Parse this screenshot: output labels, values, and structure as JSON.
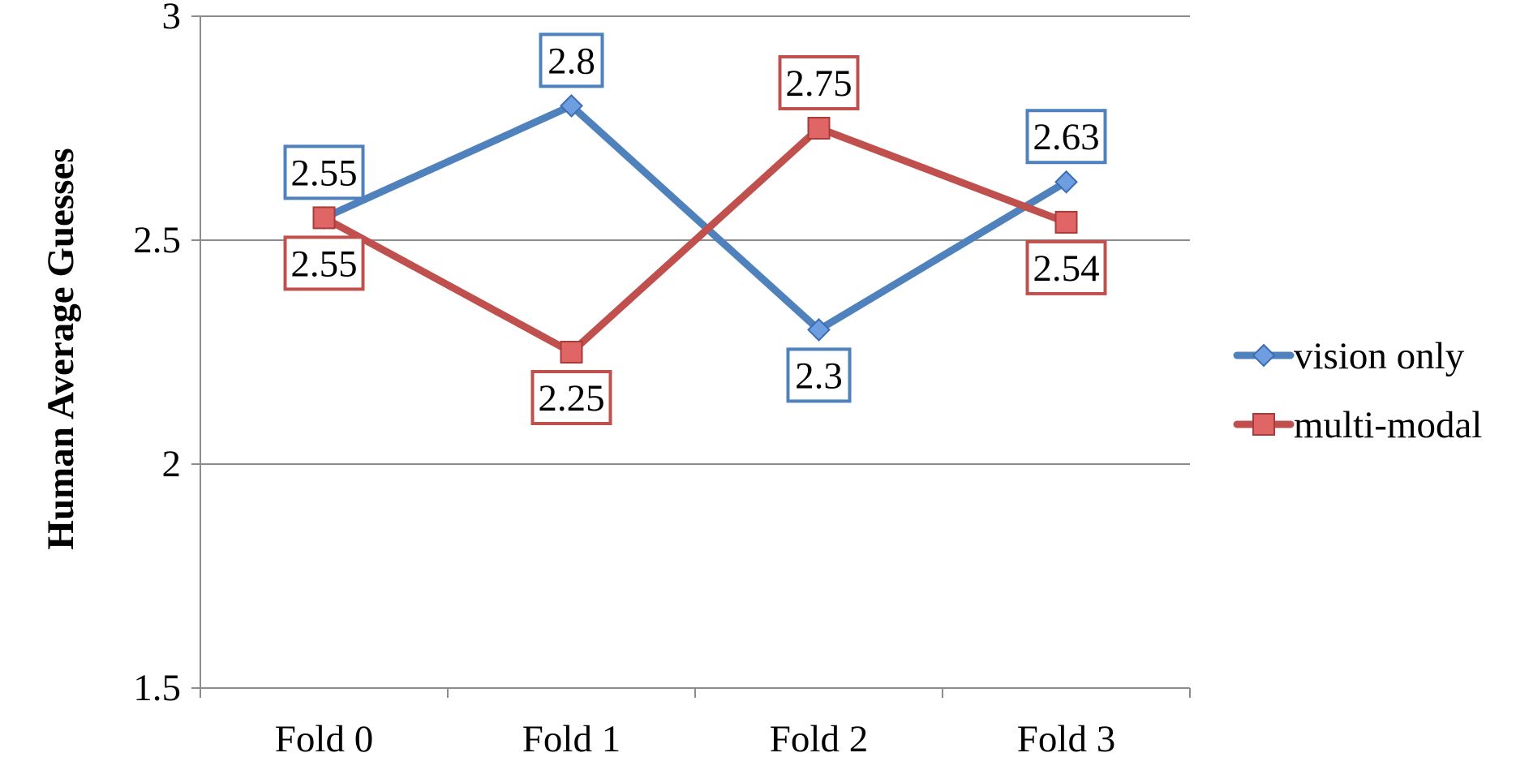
{
  "chart_data": {
    "type": "line",
    "title": "",
    "xlabel": "",
    "ylabel": "Human Average Guesses",
    "categories": [
      "Fold 0",
      "Fold 1",
      "Fold 2",
      "Fold 3"
    ],
    "ylim": [
      1.5,
      3
    ],
    "yticks": [
      1.5,
      2,
      2.5,
      3
    ],
    "ytick_labels": [
      "1.5",
      "2",
      "2.5",
      "3"
    ],
    "grid": true,
    "legend_position": "right",
    "series": [
      {
        "name": "vision only",
        "values": [
          2.55,
          2.8,
          2.3,
          2.63
        ],
        "value_labels": [
          "2.55",
          "2.8",
          "2.3",
          "2.63"
        ],
        "label_positions": [
          "above",
          "above",
          "below",
          "above"
        ],
        "color": "#4F81BD",
        "marker": "diamond"
      },
      {
        "name": "multi-modal",
        "values": [
          2.55,
          2.25,
          2.75,
          2.54
        ],
        "value_labels": [
          "2.55",
          "2.25",
          "2.75",
          "2.54"
        ],
        "label_positions": [
          "below",
          "below",
          "above",
          "below"
        ],
        "color": "#C0504D",
        "marker": "square"
      }
    ]
  }
}
